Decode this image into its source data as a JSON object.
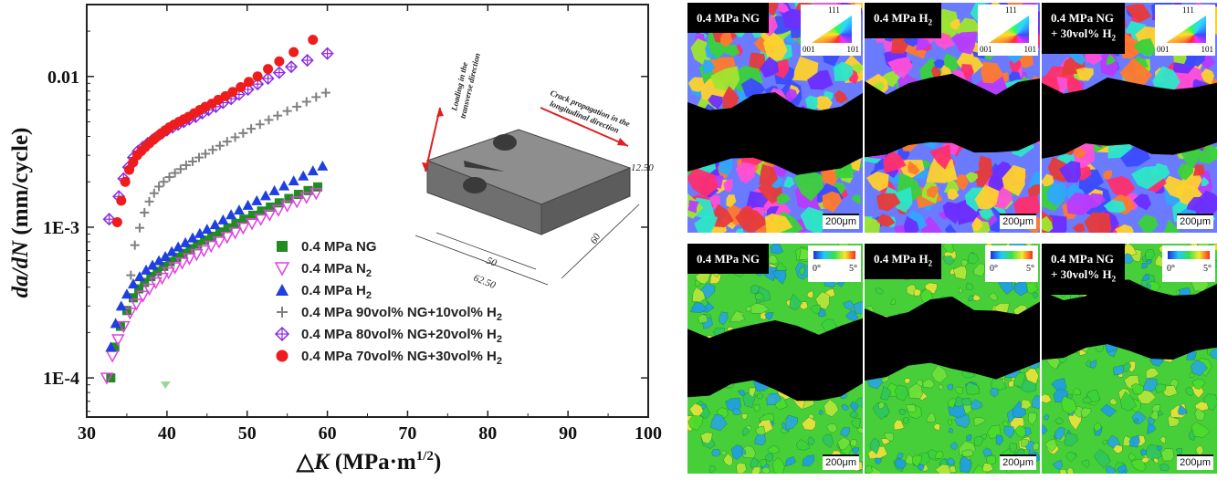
{
  "chart_data": {
    "type": "scatter",
    "xlabel_prefix": "△",
    "xlabel_var": "K",
    "xlabel_unit": " (MPa·m",
    "xlabel_sup": "1/2",
    "xlabel_end": ")",
    "ylabel_var": "da/dN",
    "ylabel_unit": " (mm/cycle)",
    "yscale": "log",
    "xlim": [
      30,
      100
    ],
    "ylim": [
      5.5e-05,
      0.03
    ],
    "x_ticks": [
      30,
      40,
      50,
      60,
      70,
      80,
      90,
      100
    ],
    "x_tick_labels": [
      "30",
      "40",
      "50",
      "60",
      "70",
      "80",
      "90",
      "100"
    ],
    "y_ticks": [
      0.0001,
      0.001,
      0.01
    ],
    "y_tick_labels": [
      "1E-4",
      "1E-3",
      "0.01"
    ],
    "legend_position": "lower-middle",
    "series": [
      {
        "name": "0.4 MPa NG",
        "name_sub": "",
        "marker": "square",
        "color": "#228b22",
        "x": [
          33.0,
          33.5,
          34.2,
          35.0,
          35.8,
          36.5,
          37.2,
          38.0,
          38.8,
          39.6,
          40.4,
          41.2,
          42.0,
          42.9,
          43.8,
          44.7,
          45.6,
          46.6,
          47.6,
          48.6,
          49.6,
          50.7,
          51.8,
          52.9,
          54.0,
          55.2,
          56.4,
          57.6,
          58.8
        ],
        "y": [
          0.0001,
          0.00016,
          0.00022,
          0.00028,
          0.00034,
          0.00039,
          0.00043,
          0.00047,
          0.00051,
          0.00055,
          0.00059,
          0.00063,
          0.00067,
          0.00072,
          0.00077,
          0.00082,
          0.00087,
          0.00093,
          0.00099,
          0.00106,
          0.00113,
          0.0012,
          0.00128,
          0.00136,
          0.00145,
          0.00155,
          0.00165,
          0.00175,
          0.00185
        ]
      },
      {
        "name": "0.4 MPa N",
        "name_sub": "2",
        "marker": "triangle-down-open",
        "color": "#e040e0",
        "x": [
          32.5,
          33.2,
          33.9,
          34.6,
          35.4,
          36.2,
          37.0,
          37.8,
          38.6,
          39.4,
          40.2,
          41.0,
          41.9,
          42.8,
          43.7,
          44.6,
          45.5,
          46.5,
          47.5,
          48.5,
          49.5,
          50.6,
          51.7,
          52.8,
          53.9,
          55.0,
          56.2,
          57.4,
          58.6
        ],
        "y": [
          0.0001,
          0.00014,
          0.00018,
          0.00022,
          0.00027,
          0.00031,
          0.00035,
          0.00039,
          0.00043,
          0.00046,
          0.0005,
          0.00054,
          0.00058,
          0.00062,
          0.00066,
          0.0007,
          0.00075,
          0.0008,
          0.00086,
          0.00092,
          0.00099,
          0.00106,
          0.00113,
          0.00121,
          0.0013,
          0.00139,
          0.00148,
          0.00158,
          0.00168
        ]
      },
      {
        "name": "0.4 MPa H",
        "name_sub": "2",
        "marker": "triangle-up",
        "color": "#1f3fe0",
        "x": [
          33.0,
          33.6,
          34.3,
          35.0,
          35.8,
          36.6,
          37.4,
          38.2,
          39.0,
          39.8,
          40.6,
          41.4,
          42.3,
          43.2,
          44.1,
          45.0,
          46.0,
          47.0,
          48.0,
          49.0,
          50.1,
          51.2,
          52.3,
          53.4,
          54.6,
          55.8,
          57.0,
          58.2,
          59.4
        ],
        "y": [
          0.00016,
          0.00023,
          0.0003,
          0.00036,
          0.00042,
          0.00047,
          0.00052,
          0.00056,
          0.0006,
          0.00064,
          0.00069,
          0.00074,
          0.00079,
          0.00085,
          0.00091,
          0.00097,
          0.00104,
          0.00112,
          0.00121,
          0.0013,
          0.0014,
          0.0015,
          0.00162,
          0.00175,
          0.00188,
          0.00203,
          0.00219,
          0.00237,
          0.00255
        ]
      },
      {
        "name": "0.4 MPa 90vol% NG+10vol% H",
        "name_sub": "2",
        "marker": "plus",
        "color": "#808080",
        "x": [
          35.5,
          36.0,
          36.6,
          37.2,
          37.8,
          38.4,
          39.0,
          39.6,
          40.3,
          41.0,
          41.7,
          42.4,
          43.2,
          44.0,
          44.8,
          45.7,
          46.6,
          47.5,
          48.5,
          49.5,
          50.5,
          51.6,
          52.7,
          53.8,
          55.0,
          56.2,
          57.4,
          58.6,
          59.8
        ],
        "y": [
          0.00048,
          0.00076,
          0.00099,
          0.00125,
          0.00148,
          0.00168,
          0.00186,
          0.002,
          0.00215,
          0.00229,
          0.00243,
          0.00258,
          0.00273,
          0.0029,
          0.00307,
          0.00326,
          0.00347,
          0.0037,
          0.00395,
          0.00421,
          0.0045,
          0.00481,
          0.00515,
          0.0055,
          0.0059,
          0.0063,
          0.0068,
          0.0073,
          0.0078
        ]
      },
      {
        "name": "0.4 MPa 80vol% NG+20vol% H",
        "name_sub": "2",
        "marker": "diamond-cross",
        "color": "#8a2be2",
        "x": [
          32.8,
          34.0,
          34.6,
          35.2,
          35.8,
          36.4,
          37.0,
          37.6,
          38.2,
          38.8,
          39.4,
          40.0,
          40.7,
          41.4,
          42.1,
          42.8,
          43.6,
          44.4,
          45.2,
          46.1,
          47.0,
          48.0,
          49.0,
          50.1,
          51.3,
          52.6,
          54.0,
          55.5,
          57.5,
          60.0
        ],
        "y": [
          0.00113,
          0.0016,
          0.0021,
          0.0025,
          0.0029,
          0.0032,
          0.0034,
          0.0036,
          0.0038,
          0.004,
          0.0042,
          0.0044,
          0.0046,
          0.0048,
          0.005,
          0.0052,
          0.0054,
          0.0057,
          0.006,
          0.0063,
          0.0067,
          0.0071,
          0.0076,
          0.0082,
          0.0089,
          0.0097,
          0.0106,
          0.0116,
          0.0128,
          0.0142
        ]
      },
      {
        "name": "0.4 MPa 70vol% NG+30vol% H",
        "name_sub": "2",
        "marker": "circle",
        "color": "#ee1c1c",
        "x": [
          33.8,
          34.3,
          34.8,
          35.3,
          35.8,
          36.3,
          36.8,
          37.3,
          37.8,
          38.3,
          38.8,
          39.3,
          39.8,
          40.3,
          40.9,
          41.5,
          42.1,
          42.7,
          43.4,
          44.1,
          44.8,
          45.6,
          46.4,
          47.3,
          48.2,
          49.2,
          50.2,
          51.3,
          52.6,
          54.0,
          55.8,
          58.2
        ],
        "y": [
          0.00108,
          0.0015,
          0.002,
          0.0024,
          0.0027,
          0.003,
          0.0032,
          0.0034,
          0.0036,
          0.0038,
          0.004,
          0.0042,
          0.0044,
          0.0046,
          0.0048,
          0.005,
          0.0052,
          0.0054,
          0.0057,
          0.006,
          0.0063,
          0.0066,
          0.007,
          0.0074,
          0.0079,
          0.0085,
          0.0092,
          0.01,
          0.0112,
          0.0126,
          0.0145,
          0.0175
        ]
      }
    ]
  },
  "specimen": {
    "dim_50": "50",
    "dim_62": "62.50",
    "dim_60": "60",
    "dim_12": "12.50",
    "note_longitudinal": "Crack propagation in the longitudinal direction",
    "note_transverse": "Loading in the transverse direction"
  },
  "micrographs": {
    "ebsd": [
      {
        "label": "0.4 MPa NG",
        "sub": "",
        "line2": ""
      },
      {
        "label": "0.4 MPa H",
        "sub": "2",
        "line2": ""
      },
      {
        "label": "0.4 MPa NG",
        "sub": "",
        "line2": "+ 30vol% H",
        "line2_sub": "2"
      }
    ],
    "kam": [
      {
        "label": "0.4 MPa NG",
        "sub": "",
        "line2": ""
      },
      {
        "label": "0.4 MPa H",
        "sub": "2",
        "line2": ""
      },
      {
        "label": "0.4 MPa NG",
        "sub": "",
        "line2": "+ 30vol% H",
        "line2_sub": "2"
      }
    ],
    "scale_bar": "200μm",
    "ipf_111": "111",
    "ipf_001": "001",
    "ipf_101": "101",
    "kam_min": "0°",
    "kam_max": "5°"
  }
}
